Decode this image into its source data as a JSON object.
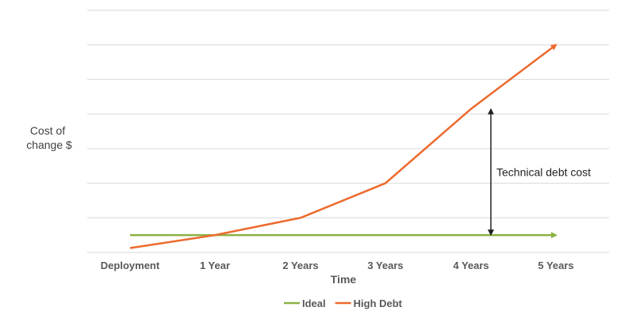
{
  "chart_data": {
    "type": "line",
    "categories": [
      "Deployment",
      "1 Year",
      "2 Years",
      "3 Years",
      "4 Years",
      "5 Years"
    ],
    "series": [
      {
        "name": "Ideal",
        "color": "#8CB043",
        "values": [
          1,
          1,
          1,
          1,
          1,
          1
        ]
      },
      {
        "name": "High Debt",
        "color": "#ED6A2D",
        "values": [
          0.25,
          1,
          2,
          4,
          8.3,
          12
        ]
      }
    ],
    "xlabel": "Time",
    "ylabel": "Cost of change $",
    "ylim": [
      0,
      14
    ],
    "grid": true,
    "legend": "bottom",
    "annotation": {
      "label": "Technical debt cost",
      "category": "4 Years",
      "from": 1,
      "to": 8.3
    }
  }
}
